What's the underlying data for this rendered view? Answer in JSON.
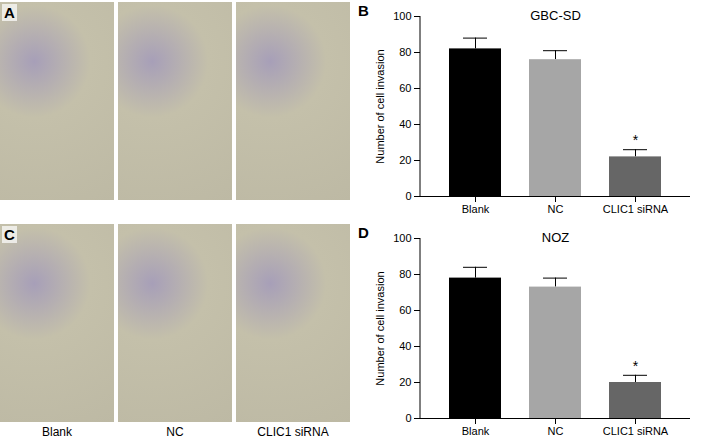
{
  "chart_data": [
    {
      "type": "bar",
      "panel_label": "B",
      "title": "GBC-SD",
      "categories": [
        "Blank",
        "NC",
        "CLIC1 siRNA"
      ],
      "values": [
        82,
        76,
        22
      ],
      "errors": [
        6,
        5,
        4
      ],
      "colors": [
        "#000000",
        "#a6a6a6",
        "#666666"
      ],
      "y_label": "Number of cell invasion",
      "ylim": [
        0,
        100
      ],
      "yticks": [
        0,
        20,
        40,
        60,
        80,
        100
      ],
      "annotations": [
        {
          "category": "CLIC1 siRNA",
          "text": "*"
        }
      ]
    },
    {
      "type": "bar",
      "panel_label": "D",
      "title": "NOZ",
      "categories": [
        "Blank",
        "NC",
        "CLIC1 siRNA"
      ],
      "values": [
        78,
        73,
        20
      ],
      "errors": [
        6,
        5,
        4
      ],
      "colors": [
        "#000000",
        "#a6a6a6",
        "#666666"
      ],
      "y_label": "Number of cell invasion",
      "ylim": [
        0,
        100
      ],
      "yticks": [
        0,
        20,
        40,
        60,
        80,
        100
      ],
      "annotations": [
        {
          "category": "CLIC1 siRNA",
          "text": "*"
        }
      ]
    }
  ],
  "image_panels": [
    {
      "panel_label": "A"
    },
    {
      "panel_label": "C",
      "captions": [
        "Blank",
        "NC",
        "CLIC1 siRNA"
      ]
    }
  ]
}
